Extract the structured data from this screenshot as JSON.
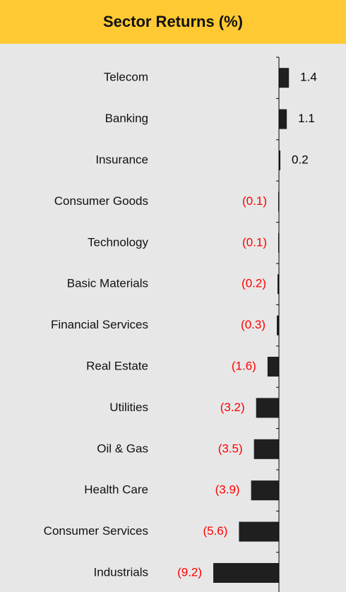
{
  "chart_data": {
    "type": "barh",
    "title": "Sector Returns (%)",
    "categories": [
      "Telecom",
      "Banking",
      "Insurance",
      "Consumer Goods",
      "Technology",
      "Basic Materials",
      "Financial Services",
      "Real Estate",
      "Utilities",
      "Oil & Gas",
      "Health Care",
      "Consumer Services",
      "Industrials"
    ],
    "values": [
      1.4,
      1.1,
      0.2,
      -0.1,
      -0.1,
      -0.2,
      -0.3,
      -1.6,
      -3.2,
      -3.5,
      -3.9,
      -5.6,
      -9.2
    ],
    "value_labels": [
      "1.4",
      "1.1",
      "0.2",
      "(0.1)",
      "(0.1)",
      "(0.2)",
      "(0.3)",
      "(1.6)",
      "(3.2)",
      "(3.5)",
      "(3.9)",
      "(5.6)",
      "(9.2)"
    ],
    "color": "#1f1f1f",
    "label_colors": {
      "positive": "#000000",
      "negative": "#ff0000"
    },
    "xlim": [
      -9.7,
      9.1
    ]
  }
}
